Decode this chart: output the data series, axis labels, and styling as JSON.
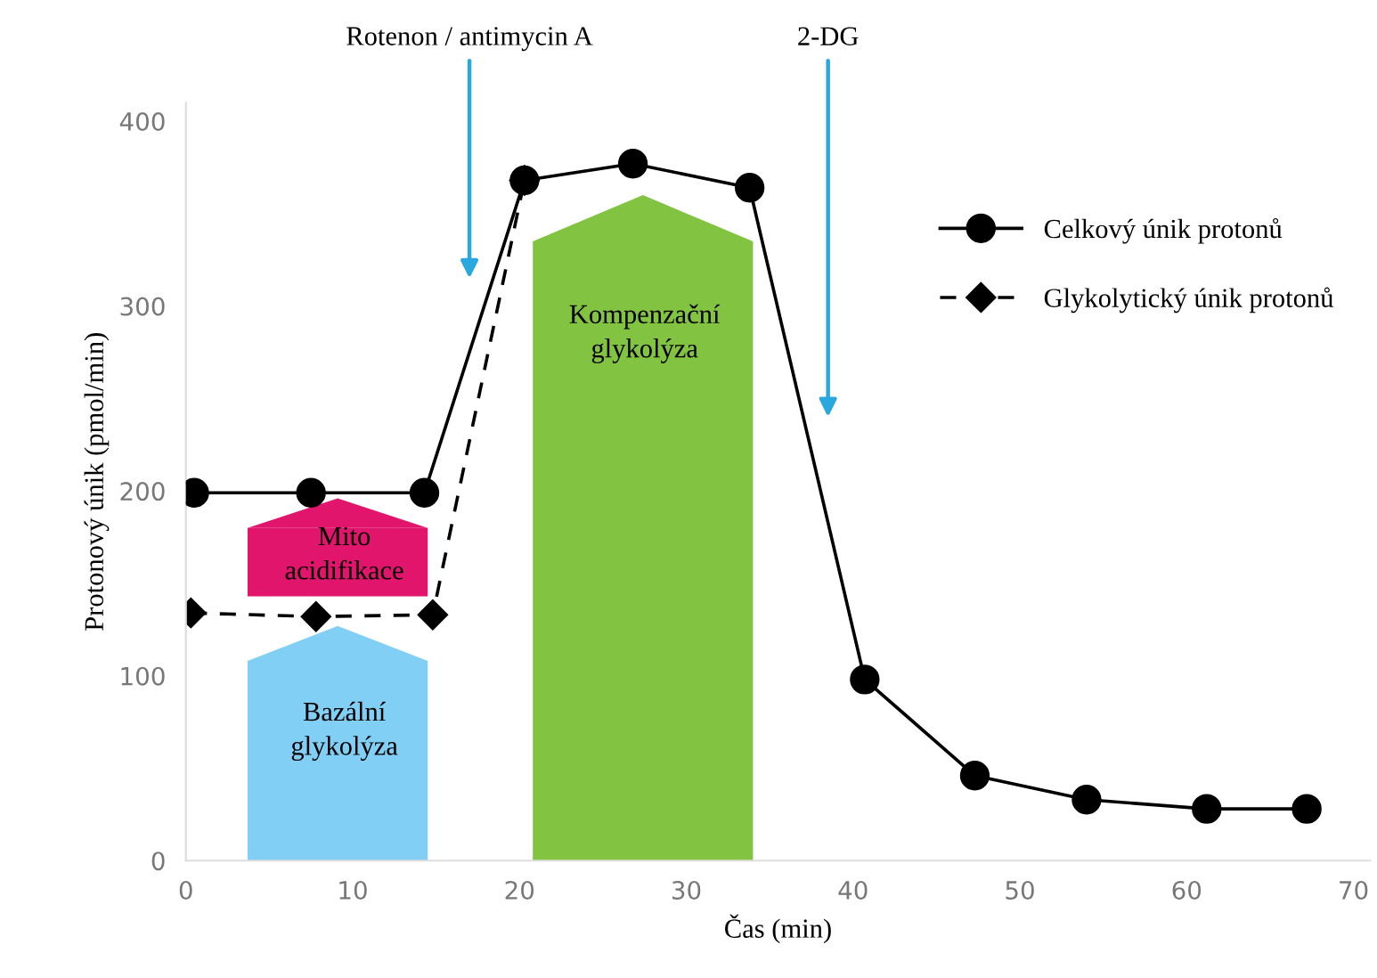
{
  "chart_data": {
    "type": "line",
    "xlabel": "Čas (min)",
    "ylabel": "Protonový únik (pmol/min)",
    "xlim": [
      0,
      71
    ],
    "xticks": [
      0,
      10,
      20,
      30,
      40,
      50,
      60,
      70
    ],
    "ylim": [
      0,
      410
    ],
    "yticks": [
      0,
      100,
      200,
      300,
      400
    ],
    "grid": false,
    "legend": "top right",
    "series": [
      {
        "name": "Celkový únik protonů",
        "color": "#000000",
        "marker": "circle",
        "line_style": "solid",
        "x": [
          0.5,
          7.5,
          14.3,
          20.3,
          26.8,
          33.8,
          40.7,
          47.3,
          54,
          61.2,
          67.2
        ],
        "values": [
          199,
          199,
          199,
          368,
          377,
          364,
          98,
          46,
          33,
          28,
          28
        ]
      },
      {
        "name": "Glykolytický únik protonů",
        "color": "#000000",
        "marker": "diamond",
        "line_style": "dashed",
        "x": [
          0.3,
          7.8,
          14.8,
          20.3
        ],
        "values": [
          134,
          132,
          133,
          368
        ]
      },
      {
        "type": "bar",
        "x": [
          9.1,
          27.4
        ],
        "base": [
          0,
          0
        ],
        "values": [
          108,
          335
        ],
        "colors": [
          "#82cff5",
          "#82c341"
        ]
      },
      {
        "type": "bar",
        "x": [
          9.1
        ],
        "base": [
          143
        ],
        "values": [
          37
        ],
        "colors": [
          "#e0156b"
        ]
      }
    ],
    "annotations": [
      "Rotenon / antimycin A",
      "2-DG",
      "Mito\nacidifikace",
      "Bazální\nglykolýza",
      "Kompenzační\nglykolýza"
    ]
  }
}
